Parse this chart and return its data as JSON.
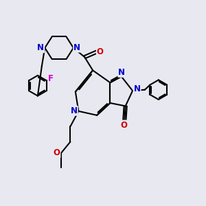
{
  "bg_color": "#e8e8f0",
  "bond_color": "#000000",
  "bond_width": 1.5,
  "atom_colors": {
    "N": "#0000cc",
    "O": "#cc0000",
    "F": "#cc00cc",
    "C": "#000000"
  },
  "font_size": 8.5
}
